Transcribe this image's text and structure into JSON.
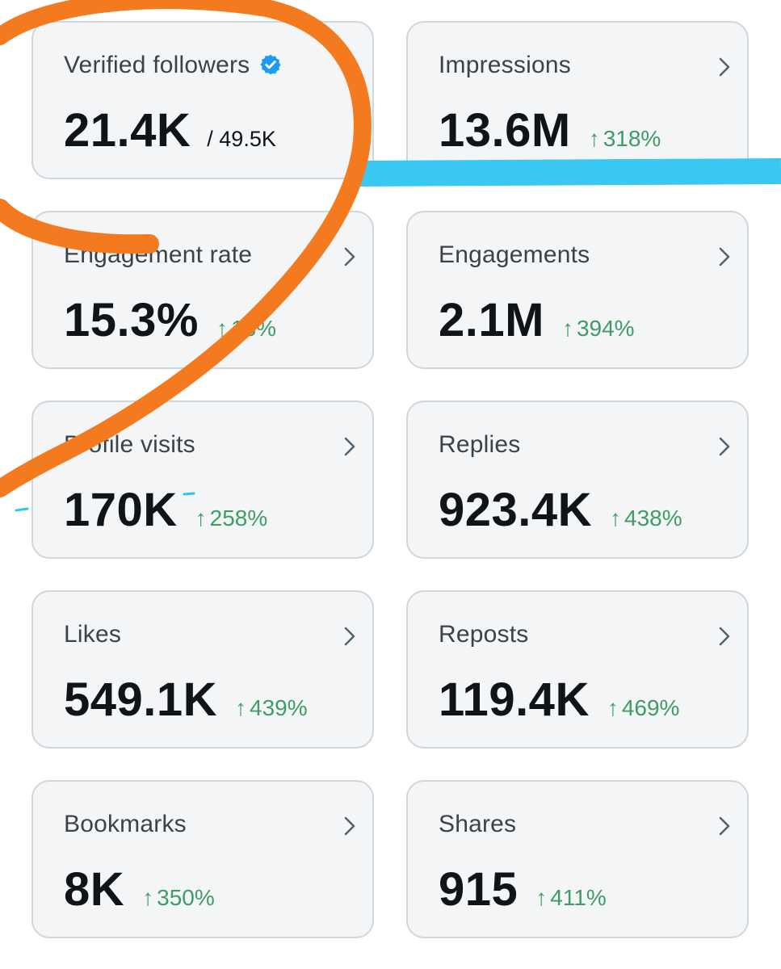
{
  "cards": [
    {
      "label": "Verified followers",
      "value": "21.4K",
      "total": "/ 49.5K",
      "verified_icon": "verified-badge-icon",
      "badge_color": "#1d9bf0"
    },
    {
      "label": "Impressions",
      "value": "13.6M",
      "delta_arrow": "↑",
      "delta": "318%"
    },
    {
      "label": "Engagement rate",
      "value": "15.3%",
      "delta_arrow": "↑",
      "delta": "18%"
    },
    {
      "label": "Engagements",
      "value": "2.1M",
      "delta_arrow": "↑",
      "delta": "394%"
    },
    {
      "label": "Profile visits",
      "value": "170K",
      "delta_arrow": "↑",
      "delta": "258%"
    },
    {
      "label": "Replies",
      "value": "923.4K",
      "delta_arrow": "↑",
      "delta": "438%"
    },
    {
      "label": "Likes",
      "value": "549.1K",
      "delta_arrow": "↑",
      "delta": "439%"
    },
    {
      "label": "Reposts",
      "value": "119.4K",
      "delta_arrow": "↑",
      "delta": "469%"
    },
    {
      "label": "Bookmarks",
      "value": "8K",
      "delta_arrow": "↑",
      "delta": "350%"
    },
    {
      "label": "Shares",
      "value": "915",
      "delta_arrow": "↑",
      "delta": "411%"
    }
  ],
  "colors": {
    "positive_delta": "#3f9c66",
    "card_background": "#f4f5f6",
    "card_border": "#cfd6dc",
    "annotation_orange": "#f47a1f",
    "annotation_blue": "#2ec5f0"
  },
  "icons": {
    "chevron": "chevron-right-icon"
  },
  "annotations": [
    {
      "name": "orange-marker-scribble",
      "color": "#f47a1f"
    },
    {
      "name": "blue-marker-stroke",
      "color": "#2ec5f0"
    }
  ]
}
